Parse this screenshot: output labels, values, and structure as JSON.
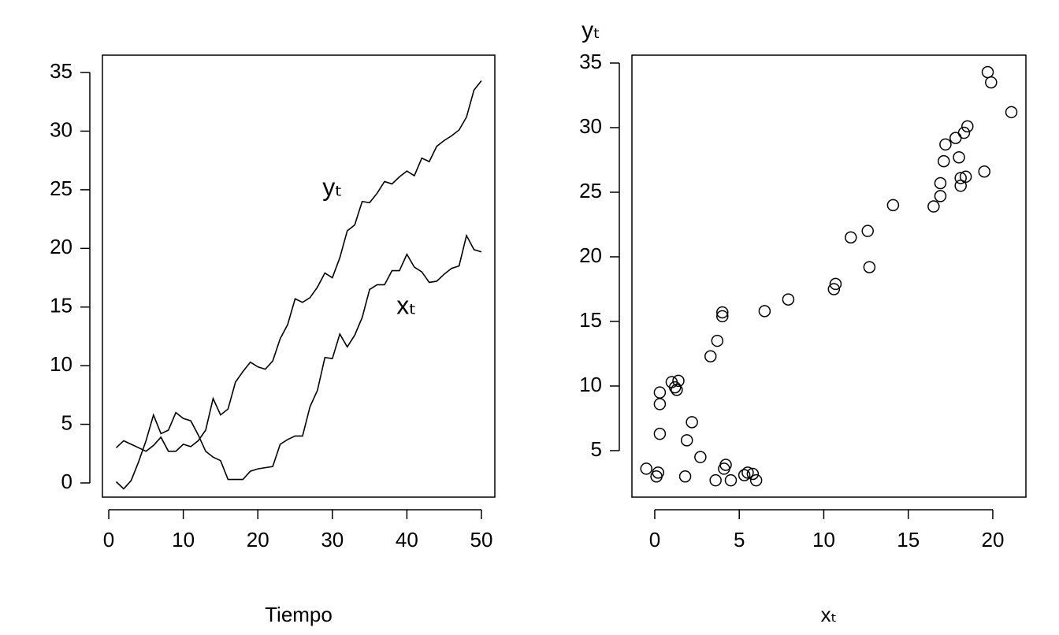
{
  "chart_data": [
    {
      "type": "line",
      "x_label": "Tiempo",
      "x": [
        1,
        2,
        3,
        4,
        5,
        6,
        7,
        8,
        9,
        10,
        11,
        12,
        13,
        14,
        15,
        16,
        17,
        18,
        19,
        20,
        21,
        22,
        23,
        24,
        25,
        26,
        27,
        28,
        29,
        30,
        31,
        32,
        33,
        34,
        35,
        36,
        37,
        38,
        39,
        40,
        41,
        42,
        43,
        44,
        45,
        46,
        47,
        48,
        49,
        50
      ],
      "series": [
        {
          "name": "yₜ",
          "color": "#000000",
          "values": [
            3.0,
            3.6,
            3.3,
            3.0,
            2.7,
            3.2,
            3.9,
            2.7,
            2.7,
            3.3,
            3.1,
            3.6,
            4.5,
            7.2,
            5.8,
            6.3,
            8.6,
            9.5,
            10.3,
            9.9,
            9.7,
            10.4,
            12.3,
            13.5,
            15.7,
            15.4,
            15.8,
            16.7,
            17.9,
            17.5,
            19.2,
            21.5,
            22.0,
            24.0,
            23.9,
            24.7,
            25.7,
            25.5,
            26.1,
            26.6,
            26.2,
            27.7,
            27.4,
            28.7,
            29.2,
            29.6,
            30.1,
            31.2,
            33.5,
            34.3
          ]
        },
        {
          "name": "xₜ",
          "color": "#000000",
          "values": [
            0.1,
            -0.5,
            0.2,
            1.8,
            3.6,
            5.8,
            4.2,
            4.5,
            6.0,
            5.5,
            5.3,
            4.1,
            2.7,
            2.2,
            1.9,
            0.3,
            0.3,
            0.3,
            1.0,
            1.2,
            1.3,
            1.4,
            3.3,
            3.7,
            4.0,
            4.0,
            6.5,
            7.9,
            10.7,
            10.6,
            12.7,
            11.6,
            12.6,
            14.1,
            16.5,
            16.9,
            16.9,
            18.1,
            18.1,
            19.5,
            18.4,
            18.0,
            17.1,
            17.2,
            17.8,
            18.3,
            18.5,
            21.1,
            19.9,
            19.7
          ]
        }
      ],
      "xlim": [
        -0.85,
        51.8
      ],
      "xticks": [
        0,
        10,
        20,
        30,
        40,
        50
      ],
      "ylim": [
        -1.21,
        36.48
      ],
      "yticks": [
        0,
        5,
        10,
        15,
        20,
        25,
        30,
        35
      ]
    },
    {
      "type": "scatter",
      "x_label": "xₜ",
      "y_label": "yₜ",
      "series": [
        {
          "color": "#000000",
          "x": [
            0.1,
            -0.5,
            0.2,
            1.8,
            3.6,
            5.8,
            4.2,
            4.5,
            6.0,
            5.5,
            5.3,
            4.1,
            2.7,
            2.2,
            1.9,
            0.3,
            0.3,
            0.3,
            1.0,
            1.2,
            1.3,
            1.4,
            3.3,
            3.7,
            4.0,
            4.0,
            6.5,
            7.9,
            10.7,
            10.6,
            12.7,
            11.6,
            12.6,
            14.1,
            16.5,
            16.9,
            16.9,
            18.1,
            18.1,
            19.5,
            18.4,
            18.0,
            17.1,
            17.2,
            17.8,
            18.3,
            18.5,
            21.1,
            19.9,
            19.7
          ],
          "values": [
            3.0,
            3.6,
            3.3,
            3.0,
            2.7,
            3.2,
            3.9,
            2.7,
            2.7,
            3.3,
            3.1,
            3.6,
            4.5,
            7.2,
            5.8,
            6.3,
            8.6,
            9.5,
            10.3,
            9.9,
            9.7,
            10.4,
            12.3,
            13.5,
            15.7,
            15.4,
            15.8,
            16.7,
            17.9,
            17.5,
            19.2,
            21.5,
            22.0,
            24.0,
            23.9,
            24.7,
            25.7,
            25.5,
            26.1,
            26.6,
            26.2,
            27.7,
            27.4,
            28.7,
            29.2,
            29.6,
            30.1,
            31.2,
            33.5,
            34.3
          ]
        }
      ],
      "xlim": [
        -1.35,
        21.96
      ],
      "xticks": [
        0,
        5,
        10,
        15,
        20
      ],
      "ylim": [
        1.4,
        35.61
      ],
      "yticks": [
        5,
        10,
        15,
        20,
        25,
        30,
        35
      ]
    }
  ]
}
